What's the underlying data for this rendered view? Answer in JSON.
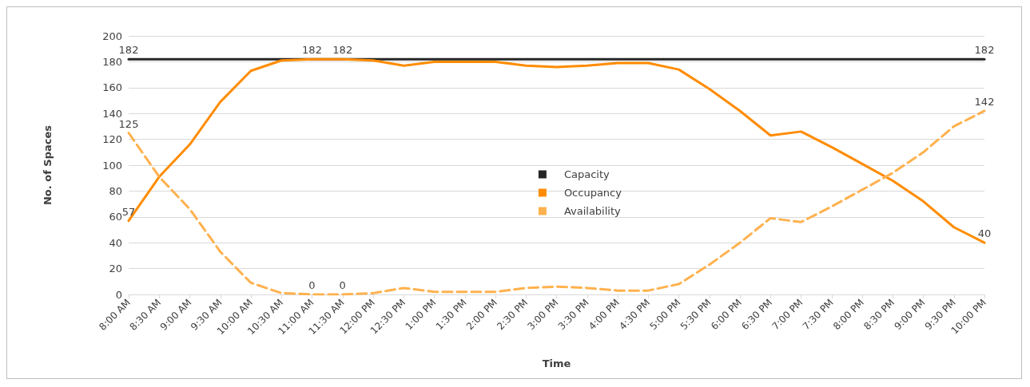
{
  "chart_data": {
    "type": "line",
    "xlabel": "Time",
    "ylabel": "No. of Spaces",
    "categories": [
      "8:00 AM",
      "8:30 AM",
      "9:00 AM",
      "9:30 AM",
      "10:00 AM",
      "10:30 AM",
      "11:00 AM",
      "11:30 AM",
      "12:00 PM",
      "12:30 PM",
      "1:00 PM",
      "1:30 PM",
      "2:00 PM",
      "2:30 PM",
      "3:00 PM",
      "3:30 PM",
      "4:00 PM",
      "4:30 PM",
      "5:00 PM",
      "5:30 PM",
      "6:00 PM",
      "6:30 PM",
      "7:00 PM",
      "7:30 PM",
      "8:00 PM",
      "8:30 PM",
      "9:00 PM",
      "9:30 PM",
      "10:00 PM"
    ],
    "series": [
      {
        "name": "Capacity",
        "color": "#262626",
        "line_style": "solid",
        "values": [
          182,
          182,
          182,
          182,
          182,
          182,
          182,
          182,
          182,
          182,
          182,
          182,
          182,
          182,
          182,
          182,
          182,
          182,
          182,
          182,
          182,
          182,
          182,
          182,
          182,
          182,
          182,
          182,
          182
        ],
        "value_labels": [
          "182",
          null,
          null,
          null,
          null,
          null,
          null,
          null,
          null,
          null,
          null,
          null,
          null,
          null,
          null,
          null,
          null,
          null,
          null,
          null,
          null,
          null,
          null,
          null,
          null,
          null,
          null,
          null,
          "182"
        ]
      },
      {
        "name": "Occupancy",
        "color": "#ff8c00",
        "line_style": "solid",
        "values": [
          57,
          91,
          116,
          149,
          173,
          181,
          182,
          182,
          181,
          177,
          180,
          180,
          180,
          177,
          176,
          177,
          179,
          179,
          174,
          159,
          142,
          123,
          126,
          114,
          101,
          88,
          72,
          52,
          40
        ],
        "value_labels": [
          "57",
          null,
          null,
          null,
          null,
          null,
          "182",
          "182",
          null,
          null,
          null,
          null,
          null,
          null,
          null,
          null,
          null,
          null,
          null,
          null,
          null,
          null,
          null,
          null,
          null,
          null,
          null,
          null,
          "40"
        ]
      },
      {
        "name": "Availability",
        "color": "#ffb14e",
        "line_style": "dashed",
        "values": [
          125,
          91,
          66,
          33,
          9,
          1,
          0,
          0,
          1,
          5,
          2,
          2,
          2,
          5,
          6,
          5,
          3,
          3,
          8,
          23,
          40,
          59,
          56,
          68,
          81,
          94,
          110,
          130,
          142
        ],
        "value_labels": [
          "125",
          null,
          null,
          null,
          null,
          null,
          "0",
          "0",
          null,
          null,
          null,
          null,
          null,
          null,
          null,
          null,
          null,
          null,
          null,
          null,
          null,
          null,
          null,
          null,
          null,
          null,
          null,
          null,
          "142"
        ]
      }
    ],
    "ylim": [
      0,
      200
    ],
    "yticks": [
      0,
      20,
      40,
      60,
      80,
      100,
      120,
      140,
      160,
      180,
      200
    ],
    "grid": "y",
    "legend": "center"
  }
}
